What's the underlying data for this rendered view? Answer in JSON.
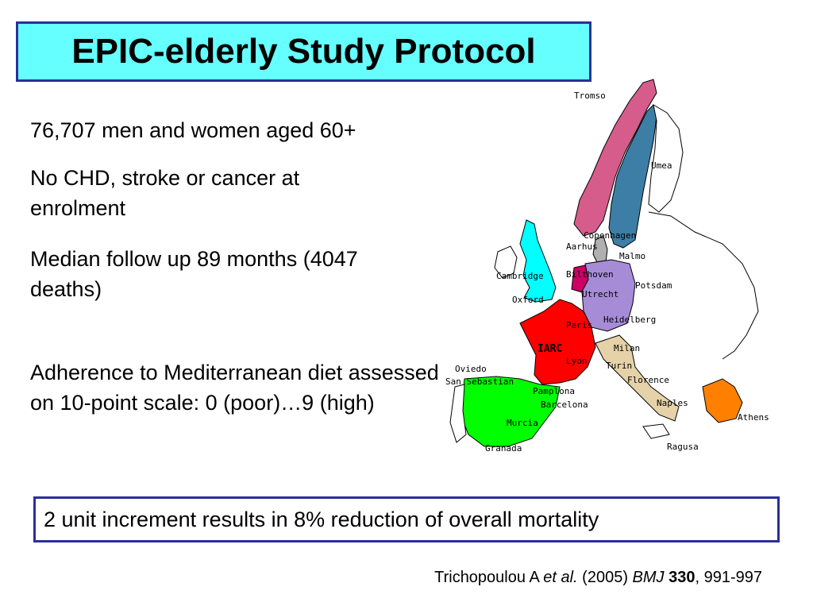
{
  "slide": {
    "title": "EPIC-elderly Study Protocol",
    "bullets": [
      "76,707 men and women aged 60+",
      "No CHD, stroke or cancer at enrolment",
      "Median follow up 89 months (4047 deaths)",
      "Adherence to Mediterranean diet assessed on 10-point scale: 0 (poor)…9 (high)"
    ],
    "result": "2 unit increment results in 8% reduction of overall mortality",
    "citation": {
      "author": "Trichopoulou A",
      "etal": "et al.",
      "year": "(2005)",
      "journal": "BMJ",
      "volume": "330",
      "pages": ", 991-997"
    }
  },
  "map": {
    "centres": [
      "Tromso",
      "Umea",
      "Copenhagen",
      "Aarhus",
      "Malmo",
      "Cambridge",
      "Oxford",
      "Bilthoven",
      "Utrecht",
      "Potsdam",
      "Paris",
      "Heidelberg",
      "IARC",
      "Milan",
      "Lyon",
      "Turin",
      "Oviedo",
      "San Sebastian",
      "Florence",
      "Pamplona",
      "Barcelona",
      "Naples",
      "Athens",
      "Murcia",
      "Granada",
      "Ragusa"
    ],
    "country_colors": {
      "norway": "#d65c8c",
      "sweden": "#3d7ea6",
      "finland": "#ffffff",
      "uk": "#00ffff",
      "denmark": "#b0b0b0",
      "netherlands": "#cc0066",
      "germany": "#a68cd6",
      "france": "#ff0000",
      "italy": "#e6d2a8",
      "spain": "#00ff00",
      "greece": "#ff8000"
    }
  }
}
